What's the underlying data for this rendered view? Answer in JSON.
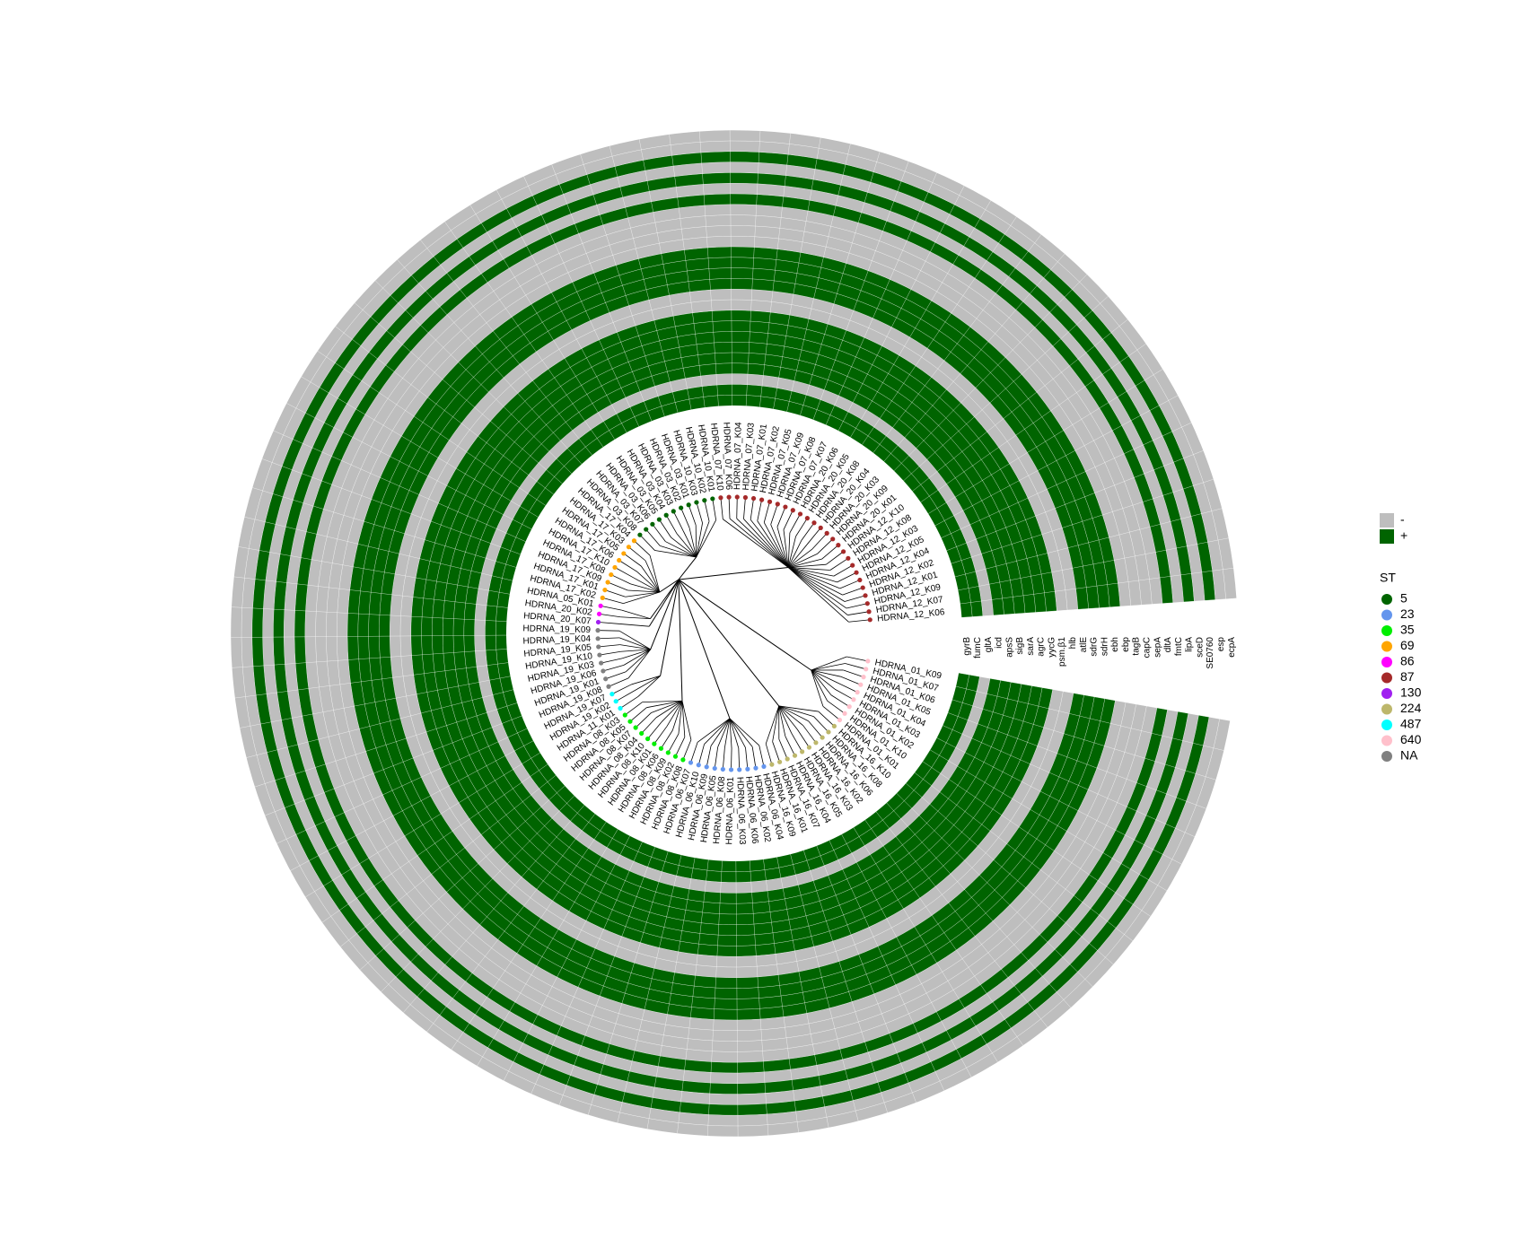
{
  "chart_data": {
    "type": "circular-tree-heatmap",
    "tips": [
      {
        "label": "HDRNA_12_K06",
        "st": "87"
      },
      {
        "label": "HDRNA_12_K07",
        "st": "87"
      },
      {
        "label": "HDRNA_12_K09",
        "st": "87"
      },
      {
        "label": "HDRNA_12_K01",
        "st": "87"
      },
      {
        "label": "HDRNA_12_K02",
        "st": "87"
      },
      {
        "label": "HDRNA_12_K04",
        "st": "87"
      },
      {
        "label": "HDRNA_12_K05",
        "st": "87"
      },
      {
        "label": "HDRNA_12_K03",
        "st": "87"
      },
      {
        "label": "HDRNA_12_K08",
        "st": "87"
      },
      {
        "label": "HDRNA_12_K10",
        "st": "87"
      },
      {
        "label": "HDRNA_20_K01",
        "st": "87"
      },
      {
        "label": "HDRNA_20_K09",
        "st": "87"
      },
      {
        "label": "HDRNA_20_K03",
        "st": "87"
      },
      {
        "label": "HDRNA_20_K04",
        "st": "87"
      },
      {
        "label": "HDRNA_20_K08",
        "st": "87"
      },
      {
        "label": "HDRNA_20_K05",
        "st": "87"
      },
      {
        "label": "HDRNA_20_K06",
        "st": "87"
      },
      {
        "label": "HDRNA_07_K07",
        "st": "87"
      },
      {
        "label": "HDRNA_07_K08",
        "st": "87"
      },
      {
        "label": "HDRNA_07_K09",
        "st": "87"
      },
      {
        "label": "HDRNA_07_K05",
        "st": "87"
      },
      {
        "label": "HDRNA_07_K02",
        "st": "87"
      },
      {
        "label": "HDRNA_07_K01",
        "st": "87"
      },
      {
        "label": "HDRNA_07_K03",
        "st": "87"
      },
      {
        "label": "HDRNA_07_K04",
        "st": "87"
      },
      {
        "label": "HDRNA_07_K06",
        "st": "87"
      },
      {
        "label": "HDRNA_07_K10",
        "st": "87"
      },
      {
        "label": "HDRNA_10_K01",
        "st": "5"
      },
      {
        "label": "HDRNA_10_K02",
        "st": "5"
      },
      {
        "label": "HDRNA_10_K03",
        "st": "5"
      },
      {
        "label": "HDRNA_03_K01",
        "st": "5"
      },
      {
        "label": "HDRNA_03_K02",
        "st": "5"
      },
      {
        "label": "HDRNA_03_K03",
        "st": "5"
      },
      {
        "label": "HDRNA_03_K04",
        "st": "5"
      },
      {
        "label": "HDRNA_03_K05",
        "st": "5"
      },
      {
        "label": "HDRNA_03_K06",
        "st": "5"
      },
      {
        "label": "HDRNA_03_K07",
        "st": "5"
      },
      {
        "label": "HDRNA_03_K08",
        "st": "5"
      },
      {
        "label": "HDRNA_17_K04",
        "st": "69"
      },
      {
        "label": "HDRNA_17_K03",
        "st": "69"
      },
      {
        "label": "HDRNA_17_K05",
        "st": "69"
      },
      {
        "label": "HDRNA_17_K06",
        "st": "69"
      },
      {
        "label": "HDRNA_17_K10",
        "st": "69"
      },
      {
        "label": "HDRNA_17_K08",
        "st": "69"
      },
      {
        "label": "HDRNA_17_K09",
        "st": "69"
      },
      {
        "label": "HDRNA_17_K01",
        "st": "69"
      },
      {
        "label": "HDRNA_17_K02",
        "st": "69"
      },
      {
        "label": "HDRNA_05_K01",
        "st": "86"
      },
      {
        "label": "HDRNA_20_K02",
        "st": "86"
      },
      {
        "label": "HDRNA_20_K07",
        "st": "130"
      },
      {
        "label": "HDRNA_19_K09",
        "st": "NA"
      },
      {
        "label": "HDRNA_19_K04",
        "st": "NA"
      },
      {
        "label": "HDRNA_19_K05",
        "st": "NA"
      },
      {
        "label": "HDRNA_19_K10",
        "st": "NA"
      },
      {
        "label": "HDRNA_19_K03",
        "st": "NA"
      },
      {
        "label": "HDRNA_19_K06",
        "st": "NA"
      },
      {
        "label": "HDRNA_19_K01",
        "st": "NA"
      },
      {
        "label": "HDRNA_19_K08",
        "st": "NA"
      },
      {
        "label": "HDRNA_19_K07",
        "st": "487"
      },
      {
        "label": "HDRNA_19_K02",
        "st": "487"
      },
      {
        "label": "HDRNA_11_K01",
        "st": "487"
      },
      {
        "label": "HDRNA_08_K03",
        "st": "35"
      },
      {
        "label": "HDRNA_08_K05",
        "st": "35"
      },
      {
        "label": "HDRNA_08_K07",
        "st": "35"
      },
      {
        "label": "HDRNA_08_K04",
        "st": "35"
      },
      {
        "label": "HDRNA_08_K10",
        "st": "35"
      },
      {
        "label": "HDRNA_08_K01",
        "st": "35"
      },
      {
        "label": "HDRNA_08_K06",
        "st": "35"
      },
      {
        "label": "HDRNA_08_K09",
        "st": "35"
      },
      {
        "label": "HDRNA_08_K02",
        "st": "35"
      },
      {
        "label": "HDRNA_08_K08",
        "st": "35"
      },
      {
        "label": "HDRNA_06_K07",
        "st": "23"
      },
      {
        "label": "HDRNA_06_K10",
        "st": "23"
      },
      {
        "label": "HDRNA_06_K09",
        "st": "23"
      },
      {
        "label": "HDRNA_06_K05",
        "st": "23"
      },
      {
        "label": "HDRNA_06_K08",
        "st": "23"
      },
      {
        "label": "HDRNA_06_K01",
        "st": "23"
      },
      {
        "label": "HDRNA_06_K03",
        "st": "23"
      },
      {
        "label": "HDRNA_06_K06",
        "st": "23"
      },
      {
        "label": "HDRNA_06_K02",
        "st": "23"
      },
      {
        "label": "HDRNA_06_K04",
        "st": "23"
      },
      {
        "label": "HDRNA_16_K09",
        "st": "224"
      },
      {
        "label": "HDRNA_16_K01",
        "st": "224"
      },
      {
        "label": "HDRNA_16_K07",
        "st": "224"
      },
      {
        "label": "HDRNA_16_K04",
        "st": "224"
      },
      {
        "label": "HDRNA_16_K05",
        "st": "224"
      },
      {
        "label": "HDRNA_16_K03",
        "st": "224"
      },
      {
        "label": "HDRNA_16_K02",
        "st": "224"
      },
      {
        "label": "HDRNA_16_K06",
        "st": "224"
      },
      {
        "label": "HDRNA_16_K08",
        "st": "224"
      },
      {
        "label": "HDRNA_16_K10",
        "st": "224"
      },
      {
        "label": "HDRNA_01_K01",
        "st": "640"
      },
      {
        "label": "HDRNA_01_K10",
        "st": "640"
      },
      {
        "label": "HDRNA_01_K02",
        "st": "640"
      },
      {
        "label": "HDRNA_01_K03",
        "st": "640"
      },
      {
        "label": "HDRNA_01_K04",
        "st": "640"
      },
      {
        "label": "HDRNA_01_K05",
        "st": "640"
      },
      {
        "label": "HDRNA_01_K06",
        "st": "640"
      },
      {
        "label": "HDRNA_01_K07",
        "st": "640"
      },
      {
        "label": "HDRNA_01_K09",
        "st": "640"
      }
    ],
    "genes": [
      {
        "name": "gyrB",
        "status": "+"
      },
      {
        "name": "fumC",
        "status": "+"
      },
      {
        "name": "gltA",
        "status": "-"
      },
      {
        "name": "icd",
        "status": "+"
      },
      {
        "name": "apsS",
        "status": "+"
      },
      {
        "name": "sigB",
        "status": "+"
      },
      {
        "name": "sarA",
        "status": "+"
      },
      {
        "name": "agrC",
        "status": "+"
      },
      {
        "name": "yycG",
        "status": "+"
      },
      {
        "name": "psm.β1",
        "status": "-"
      },
      {
        "name": "hlb",
        "status": "-"
      },
      {
        "name": "atlE",
        "status": "+"
      },
      {
        "name": "sdrG",
        "status": "+"
      },
      {
        "name": "sdrH",
        "status": "+"
      },
      {
        "name": "ebh",
        "status": "+"
      },
      {
        "name": "ebp",
        "status": "-"
      },
      {
        "name": "tagB",
        "status": "-"
      },
      {
        "name": "capC",
        "status": "-"
      },
      {
        "name": "sepA",
        "status": "-"
      },
      {
        "name": "dltA",
        "status": "+"
      },
      {
        "name": "fmtC",
        "status": "-"
      },
      {
        "name": "lipA",
        "status": "+"
      },
      {
        "name": "sceD",
        "status": "-"
      },
      {
        "name": "SE0760",
        "status": "+"
      },
      {
        "name": "esp",
        "status": "-"
      },
      {
        "name": "ecpA",
        "status": "-"
      }
    ],
    "heatmap_legend": [
      {
        "label": "-",
        "color": "#bebebe"
      },
      {
        "label": "+",
        "color": "#006400"
      }
    ],
    "st_legend": {
      "title": "ST",
      "items": [
        {
          "label": "5",
          "color": "#006400"
        },
        {
          "label": "23",
          "color": "#6495ed"
        },
        {
          "label": "35",
          "color": "#00ee00"
        },
        {
          "label": "69",
          "color": "#ffa500"
        },
        {
          "label": "86",
          "color": "#ff00ff"
        },
        {
          "label": "87",
          "color": "#a52a2a"
        },
        {
          "label": "130",
          "color": "#a020f0"
        },
        {
          "label": "224",
          "color": "#bdb76b"
        },
        {
          "label": "487",
          "color": "#00ffff"
        },
        {
          "label": "640",
          "color": "#ffc0cb"
        },
        {
          "label": "NA",
          "color": "#808080"
        }
      ]
    }
  }
}
